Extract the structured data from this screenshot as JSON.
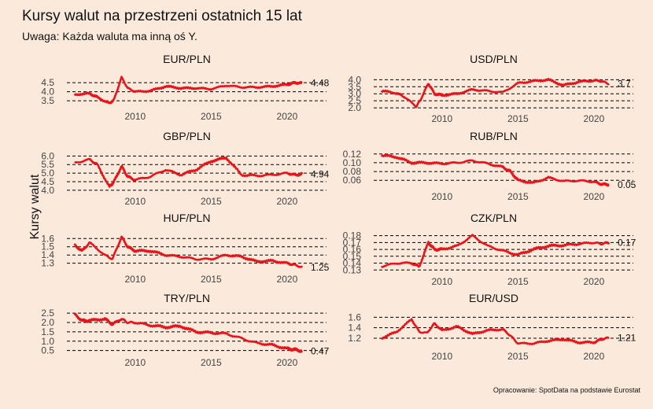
{
  "title": "Kursy walut na przestrzeni ostatnich 15 lat",
  "subtitle": "Uwaga: Każda waluta ma inną oś Y.",
  "ylabel": "Kursy walut",
  "caption": "Opracowanie: SpotData na podstawie Eurostat",
  "colors": {
    "line": "#e8141b",
    "background": "#fbeadb",
    "grid": "#000000"
  },
  "chart_data": [
    {
      "type": "line",
      "title": "EUR/PLN",
      "x_ticks": [
        2010,
        2015,
        2020
      ],
      "y_ticks": [
        "3.5",
        "4.0",
        "4.5"
      ],
      "ylim": [
        3.2,
        4.9
      ],
      "xlim": [
        2005.5,
        2021.3
      ],
      "last_label": "4.48",
      "x": [
        2006,
        2007,
        2007.5,
        2008.3,
        2008.6,
        2009.1,
        2009.5,
        2010,
        2011,
        2012,
        2013,
        2014,
        2015,
        2016,
        2017,
        2018,
        2019,
        2020,
        2020.5,
        2021
      ],
      "y": [
        3.85,
        3.9,
        3.7,
        3.35,
        3.55,
        4.8,
        4.2,
        4.0,
        4.05,
        4.3,
        4.2,
        4.2,
        4.15,
        4.35,
        4.25,
        4.25,
        4.3,
        4.4,
        4.5,
        4.48
      ]
    },
    {
      "type": "line",
      "title": "USD/PLN",
      "x_ticks": [
        2010,
        2015,
        2020
      ],
      "y_ticks": [
        "2.0",
        "2.5",
        "3.0",
        "3.5",
        "4.0"
      ],
      "ylim": [
        1.95,
        4.3
      ],
      "xlim": [
        2005.5,
        2021.3
      ],
      "last_label": "3.7",
      "x": [
        2006,
        2007,
        2007.5,
        2008.3,
        2008.6,
        2009.1,
        2009.5,
        2010,
        2011,
        2012,
        2013,
        2014,
        2015,
        2016,
        2017,
        2018,
        2019,
        2020,
        2020.5,
        2021
      ],
      "y": [
        3.2,
        3.05,
        2.8,
        2.1,
        2.6,
        3.75,
        3.0,
        2.9,
        3.0,
        3.3,
        3.2,
        3.1,
        3.75,
        3.9,
        4.0,
        3.6,
        3.85,
        3.95,
        3.9,
        3.7
      ]
    },
    {
      "type": "line",
      "title": "GBP/PLN",
      "x_ticks": [
        2010,
        2015,
        2020
      ],
      "y_ticks": [
        "4.0",
        "4.5",
        "5.0",
        "5.5",
        "6.0"
      ],
      "ylim": [
        3.95,
        6.2
      ],
      "xlim": [
        2005.5,
        2021.3
      ],
      "last_label": "4.94",
      "x": [
        2006,
        2007,
        2007.5,
        2008.3,
        2008.6,
        2009.1,
        2009.5,
        2010,
        2011,
        2012,
        2013,
        2014,
        2015,
        2016,
        2017,
        2018,
        2019,
        2020,
        2020.5,
        2021
      ],
      "y": [
        5.6,
        5.8,
        5.5,
        4.2,
        4.5,
        5.4,
        4.8,
        4.6,
        4.8,
        5.2,
        4.9,
        5.2,
        5.7,
        5.9,
        4.9,
        4.85,
        4.9,
        5.0,
        4.9,
        4.94
      ]
    },
    {
      "type": "line",
      "title": "RUB/PLN",
      "x_ticks": [
        2010,
        2015,
        2020
      ],
      "y_ticks": [
        "0.06",
        "0.08",
        "0.10",
        "0.12"
      ],
      "ylim": [
        0.046,
        0.125
      ],
      "xlim": [
        2005.5,
        2021.3
      ],
      "last_label": "0.05",
      "x": [
        2006,
        2007,
        2008,
        2009,
        2010,
        2011,
        2012,
        2013,
        2014,
        2014.5,
        2015,
        2016,
        2017,
        2018,
        2019,
        2020,
        2020.5,
        2021
      ],
      "y": [
        0.117,
        0.113,
        0.1,
        0.1,
        0.098,
        0.1,
        0.105,
        0.098,
        0.09,
        0.08,
        0.06,
        0.054,
        0.066,
        0.058,
        0.059,
        0.057,
        0.051,
        0.05
      ]
    },
    {
      "type": "line",
      "title": "HUF/PLN",
      "x_ticks": [
        2010,
        2015,
        2020
      ],
      "y_ticks": [
        "1.3",
        "1.4",
        "1.5",
        "1.6"
      ],
      "ylim": [
        1.23,
        1.66
      ],
      "xlim": [
        2005.5,
        2021.3
      ],
      "last_label": "1.25",
      "x": [
        2006,
        2006.5,
        2007,
        2008,
        2008.5,
        2009.1,
        2009.5,
        2010,
        2011,
        2012,
        2013,
        2014,
        2015,
        2016,
        2017,
        2018,
        2019,
        2020,
        2020.5,
        2021
      ],
      "y": [
        1.52,
        1.45,
        1.55,
        1.4,
        1.35,
        1.62,
        1.5,
        1.45,
        1.45,
        1.4,
        1.38,
        1.35,
        1.35,
        1.4,
        1.38,
        1.32,
        1.33,
        1.3,
        1.28,
        1.25
      ]
    },
    {
      "type": "line",
      "title": "CZK/PLN",
      "x_ticks": [
        2010,
        2015,
        2020
      ],
      "y_ticks": [
        "0.13",
        "0.14",
        "0.15",
        "0.16",
        "0.17",
        "0.18"
      ],
      "ylim": [
        0.128,
        0.183
      ],
      "xlim": [
        2005.5,
        2021.3
      ],
      "last_label": "0.17",
      "x": [
        2006,
        2007,
        2008,
        2008.5,
        2009.1,
        2009.5,
        2010,
        2011,
        2012,
        2013,
        2014,
        2015,
        2016,
        2017,
        2018,
        2019,
        2020,
        2020.5,
        2021
      ],
      "y": [
        0.135,
        0.14,
        0.14,
        0.135,
        0.17,
        0.16,
        0.16,
        0.165,
        0.18,
        0.165,
        0.158,
        0.152,
        0.16,
        0.165,
        0.166,
        0.168,
        0.17,
        0.168,
        0.17
      ]
    },
    {
      "type": "line",
      "title": "TRY/PLN",
      "x_ticks": [
        2010,
        2015,
        2020
      ],
      "y_ticks": [
        "0.5",
        "1.0",
        "1.5",
        "2.0",
        "2.5"
      ],
      "ylim": [
        0.4,
        2.55
      ],
      "xlim": [
        2005.5,
        2021.3
      ],
      "last_label": "0.47",
      "x": [
        2006,
        2006.5,
        2007,
        2008,
        2008.5,
        2009.1,
        2009.5,
        2010,
        2011,
        2012,
        2013,
        2014,
        2015,
        2016,
        2017,
        2018,
        2019,
        2020,
        2020.5,
        2021
      ],
      "y": [
        2.45,
        2.1,
        2.1,
        2.2,
        1.9,
        2.2,
        2.0,
        2.0,
        1.85,
        1.75,
        1.8,
        1.5,
        1.45,
        1.4,
        1.15,
        0.9,
        0.8,
        0.6,
        0.55,
        0.47
      ]
    },
    {
      "type": "line",
      "title": "EUR/USD",
      "x_ticks": [
        2010,
        2015,
        2020
      ],
      "y_ticks": [
        "1.2",
        "1.4",
        "1.6"
      ],
      "ylim": [
        1.05,
        1.65
      ],
      "xlim": [
        2005.5,
        2021.3
      ],
      "last_label": "1.21",
      "x": [
        2006,
        2007,
        2008,
        2008.5,
        2009,
        2009.5,
        2010,
        2011,
        2012,
        2013,
        2014,
        2014.5,
        2015,
        2016,
        2017,
        2018,
        2019,
        2020,
        2020.5,
        2021
      ],
      "y": [
        1.2,
        1.32,
        1.56,
        1.32,
        1.3,
        1.48,
        1.35,
        1.42,
        1.28,
        1.35,
        1.37,
        1.25,
        1.1,
        1.1,
        1.15,
        1.18,
        1.12,
        1.12,
        1.18,
        1.21
      ]
    }
  ]
}
